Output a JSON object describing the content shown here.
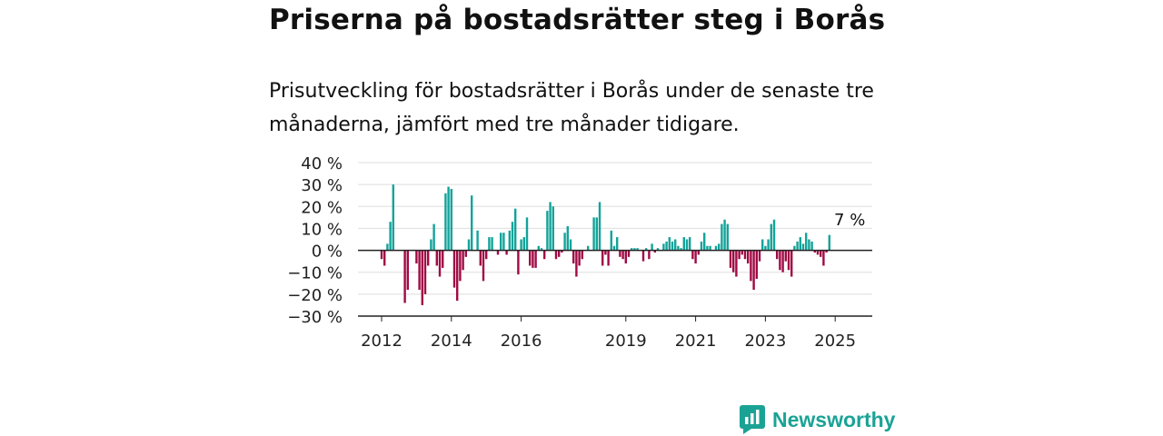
{
  "title": "Priserna på bostadsrätter steg i Borås",
  "subtitle": "Prisutveckling för bostadsrätter i Borås under de senaste tre månaderna, jämfört med tre månader tidigare.",
  "logo_text": "Newsworthy",
  "colors": {
    "positive": "#13a39a",
    "negative": "#a00a44",
    "grid": "#dddddd",
    "axis": "#222222",
    "brand": "#1aa395"
  },
  "chart_data": {
    "type": "bar",
    "title": "",
    "xlabel": "",
    "ylabel": "",
    "ylim": [
      -30,
      40
    ],
    "y_ticks": [
      40,
      30,
      20,
      10,
      0,
      -10,
      -20,
      -30
    ],
    "y_tick_labels": [
      "40 %",
      "30 %",
      "20 %",
      "10 %",
      "0 %",
      "−10 %",
      "−20 %",
      "−30 %"
    ],
    "x_ticks": [
      {
        "label": "2012",
        "year": 2012
      },
      {
        "label": "2014",
        "year": 2014
      },
      {
        "label": "2016",
        "year": 2016
      },
      {
        "label": "2019",
        "year": 2019
      },
      {
        "label": "2021",
        "year": 2021
      },
      {
        "label": "2023",
        "year": 2023
      },
      {
        "label": "2025",
        "year": 2025
      }
    ],
    "grid": true,
    "start": "2012-01",
    "annotation": {
      "text": "7 %",
      "period": "2025-06"
    },
    "values": [
      -4,
      -7,
      3,
      13,
      30,
      null,
      null,
      null,
      -24,
      -18,
      null,
      null,
      -6,
      -18,
      -25,
      -20,
      -7,
      5,
      12,
      -7,
      -12,
      -8,
      26,
      29,
      28,
      -17,
      -23,
      -14,
      -9,
      -3,
      5,
      25,
      null,
      9,
      -7,
      -14,
      -4,
      6,
      6,
      null,
      -2,
      8,
      8,
      -2,
      9,
      13,
      19,
      -11,
      5,
      6,
      15,
      -7,
      -8,
      -8,
      2,
      1,
      -4,
      18,
      22,
      20,
      -4,
      -3,
      -1,
      8,
      11,
      5,
      -6,
      -12,
      -7,
      -4,
      null,
      2,
      null,
      15,
      15,
      22,
      -7,
      -2,
      -7,
      9,
      2,
      6,
      -3,
      -4,
      -6,
      -3,
      1,
      1,
      1,
      null,
      -5,
      1,
      -4,
      3,
      -1,
      1,
      0,
      3,
      4,
      6,
      4,
      5,
      2,
      1,
      6,
      5,
      6,
      -4,
      -6,
      -2,
      4,
      8,
      2,
      2,
      0,
      2,
      3,
      12,
      14,
      12,
      -8,
      -10,
      -12,
      -4,
      -2,
      -4,
      -6,
      -14,
      -18,
      -13,
      -5,
      5,
      2,
      5,
      12,
      14,
      -4,
      -9,
      -10,
      -5,
      -9,
      -12,
      2,
      4,
      6,
      3,
      8,
      5,
      4,
      -1,
      -2,
      -3,
      -7,
      -1,
      7
    ]
  }
}
